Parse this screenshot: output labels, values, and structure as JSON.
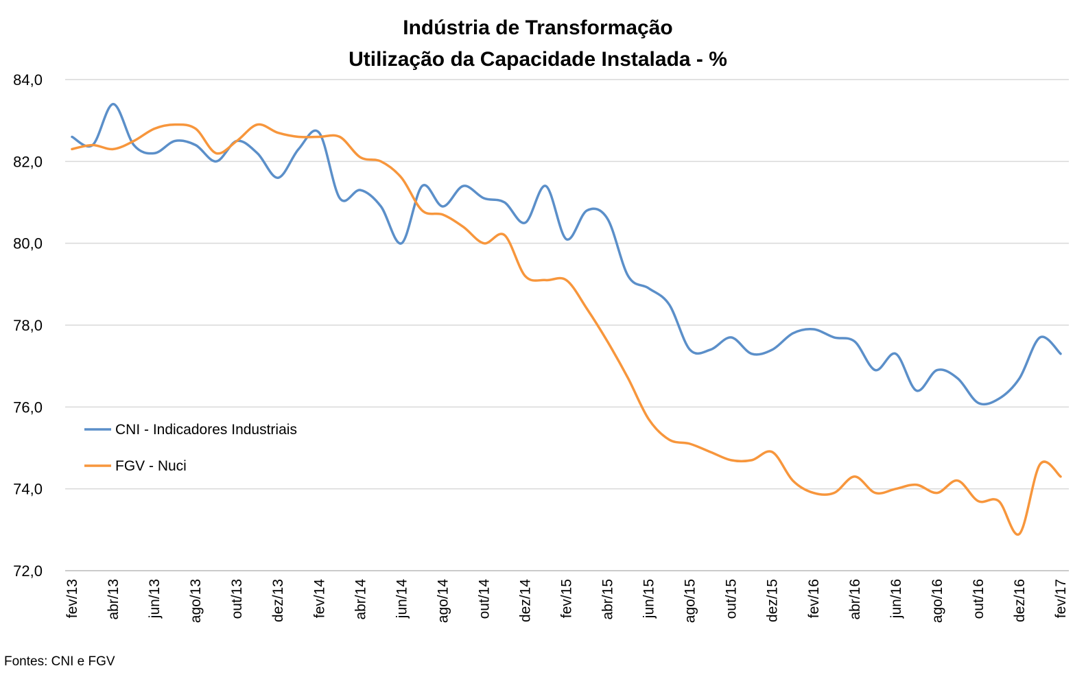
{
  "chart_data": {
    "type": "line",
    "title": [
      "Indústria de Transformação",
      "Utilização da Capacidade Instalada - %"
    ],
    "xlabel": "",
    "ylabel": "",
    "ylim": [
      72,
      84
    ],
    "yticks": [
      72,
      74,
      76,
      78,
      80,
      82,
      84
    ],
    "ytick_labels": [
      "72,0",
      "74,0",
      "76,0",
      "78,0",
      "80,0",
      "82,0",
      "84,0"
    ],
    "grid": "horizontal",
    "legend_position": "left-middle",
    "source": "Fontes: CNI e FGV",
    "x": [
      "fev/13",
      "mar/13",
      "abr/13",
      "mai/13",
      "jun/13",
      "jul/13",
      "ago/13",
      "set/13",
      "out/13",
      "nov/13",
      "dez/13",
      "jan/14",
      "fev/14",
      "mar/14",
      "abr/14",
      "mai/14",
      "jun/14",
      "jul/14",
      "ago/14",
      "set/14",
      "out/14",
      "nov/14",
      "dez/14",
      "jan/15",
      "fev/15",
      "mar/15",
      "abr/15",
      "mai/15",
      "jun/15",
      "jul/15",
      "ago/15",
      "set/15",
      "out/15",
      "nov/15",
      "dez/15",
      "jan/16",
      "fev/16",
      "mar/16",
      "abr/16",
      "mai/16",
      "jun/16",
      "jul/16",
      "ago/16",
      "set/16",
      "out/16",
      "nov/16",
      "dez/16",
      "jan/17",
      "fev/17"
    ],
    "tick_labels": [
      "fev/13",
      "abr/13",
      "jun/13",
      "ago/13",
      "out/13",
      "dez/13",
      "fev/14",
      "abr/14",
      "jun/14",
      "ago/14",
      "out/14",
      "dez/14",
      "fev/15",
      "abr/15",
      "jun/15",
      "ago/15",
      "out/15",
      "dez/15",
      "fev/16",
      "abr/16",
      "jun/16",
      "ago/16",
      "out/16",
      "dez/16",
      "fev/17"
    ],
    "series": [
      {
        "name": "CNI - Indicadores Industriais",
        "color": "#5B8FC9",
        "values": [
          82.6,
          82.4,
          83.4,
          82.4,
          82.2,
          82.5,
          82.4,
          82.0,
          82.5,
          82.2,
          81.6,
          82.3,
          82.7,
          81.1,
          81.3,
          80.9,
          80.0,
          81.4,
          80.9,
          81.4,
          81.1,
          81.0,
          80.5,
          81.4,
          80.1,
          80.8,
          80.6,
          79.2,
          78.9,
          78.5,
          77.4,
          77.4,
          77.7,
          77.3,
          77.4,
          77.8,
          77.9,
          77.7,
          77.6,
          76.9,
          77.3,
          76.4,
          76.9,
          76.7,
          76.1,
          76.2,
          76.7,
          77.7,
          77.3
        ]
      },
      {
        "name": "FGV - Nuci",
        "color": "#F7963C",
        "values": [
          82.3,
          82.4,
          82.3,
          82.5,
          82.8,
          82.9,
          82.8,
          82.2,
          82.5,
          82.9,
          82.7,
          82.6,
          82.6,
          82.6,
          82.1,
          82.0,
          81.6,
          80.8,
          80.7,
          80.4,
          80.0,
          80.2,
          79.2,
          79.1,
          79.1,
          78.4,
          77.6,
          76.7,
          75.7,
          75.2,
          75.1,
          74.9,
          74.7,
          74.7,
          74.9,
          74.2,
          73.9,
          73.9,
          74.3,
          73.9,
          74.0,
          74.1,
          73.9,
          74.2,
          73.7,
          73.7,
          72.9,
          74.6,
          74.3
        ]
      }
    ]
  }
}
